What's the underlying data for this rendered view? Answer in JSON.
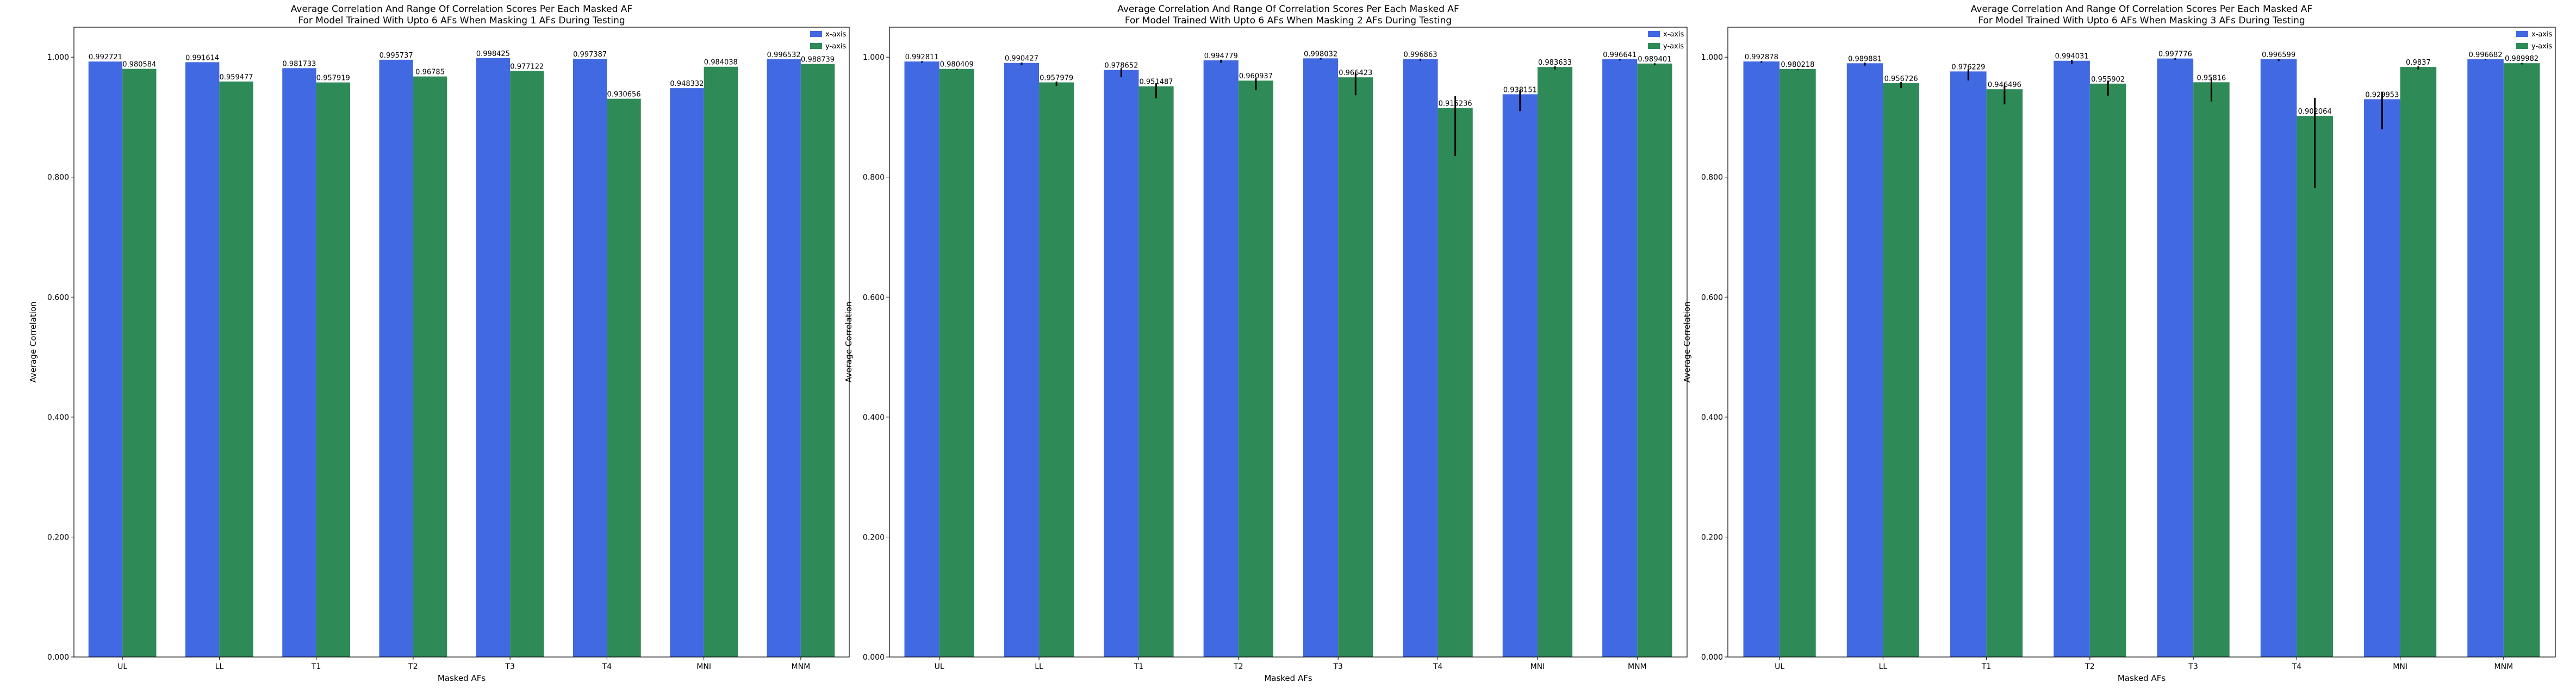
{
  "chart_data": [
    {
      "type": "bar",
      "title_line1": "Average Correlation And Range Of Correlation Scores Per Each Masked AF",
      "title_line2": "For Model Trained With Upto 6 AFs When Masking 1 AFs During Testing",
      "xlabel": "Masked AFs",
      "ylabel": "Average Correlation",
      "ylim": [
        0,
        1.05
      ],
      "yticks": [
        "0.000",
        "0.200",
        "0.400",
        "0.600",
        "0.800",
        "1.000"
      ],
      "ytick_values": [
        0,
        0.2,
        0.4,
        0.6,
        0.8,
        1.0
      ],
      "categories": [
        "UL",
        "LL",
        "T1",
        "T2",
        "T3",
        "T4",
        "MNI",
        "MNM"
      ],
      "legend_position": "top-right",
      "series": [
        {
          "name": "x-axis",
          "color": "#4169e1",
          "values": [
            0.992721,
            0.991614,
            0.981733,
            0.995737,
            0.998425,
            0.997387,
            0.948332,
            0.996532
          ],
          "labels": [
            "0.992721",
            "0.991614",
            "0.981733",
            "0.995737",
            "0.998425",
            "0.997387",
            "0.948332",
            "0.996532"
          ],
          "err": [
            0,
            0,
            0,
            0,
            0,
            0,
            0,
            0
          ]
        },
        {
          "name": "y-axis",
          "color": "#2e8b57",
          "values": [
            0.980584,
            0.959477,
            0.957919,
            0.96785,
            0.977122,
            0.930656,
            0.984038,
            0.988739
          ],
          "labels": [
            "0.980584",
            "0.959477",
            "0.957919",
            "0.96785",
            "0.977122",
            "0.930656",
            "0.984038",
            "0.988739"
          ],
          "err": [
            0,
            0,
            0,
            0,
            0,
            0,
            0,
            0
          ]
        }
      ]
    },
    {
      "type": "bar",
      "title_line1": "Average Correlation And Range Of Correlation Scores Per Each Masked AF",
      "title_line2": "For Model Trained With Upto 6 AFs When Masking 2 AFs During Testing",
      "xlabel": "Masked AFs",
      "ylabel": "Average Correlation",
      "ylim": [
        0,
        1.05
      ],
      "yticks": [
        "0.000",
        "0.200",
        "0.400",
        "0.600",
        "0.800",
        "1.000"
      ],
      "ytick_values": [
        0,
        0.2,
        0.4,
        0.6,
        0.8,
        1.0
      ],
      "categories": [
        "UL",
        "LL",
        "T1",
        "T2",
        "T3",
        "T4",
        "MNI",
        "MNM"
      ],
      "legend_position": "top-right",
      "series": [
        {
          "name": "x-axis",
          "color": "#4169e1",
          "values": [
            0.992811,
            0.990427,
            0.978652,
            0.994779,
            0.998032,
            0.996863,
            0.938151,
            0.996641
          ],
          "labels": [
            "0.992811",
            "0.990427",
            "0.978652",
            "0.994779",
            "0.998032",
            "0.996863",
            "0.938151",
            "0.996641"
          ],
          "err": [
            0.002,
            0.003,
            0.012,
            0.004,
            0.002,
            0.003,
            0.028,
            0.002
          ]
        },
        {
          "name": "y-axis",
          "color": "#2e8b57",
          "values": [
            0.980409,
            0.957979,
            0.951487,
            0.960937,
            0.966423,
            0.915236,
            0.983633,
            0.989401
          ],
          "labels": [
            "0.980409",
            "0.957979",
            "0.951487",
            "0.960937",
            "0.966423",
            "0.915236",
            "0.983633",
            "0.989401"
          ],
          "err": [
            0.002,
            0.006,
            0.02,
            0.016,
            0.03,
            0.08,
            0.004,
            0.002
          ]
        }
      ]
    },
    {
      "type": "bar",
      "title_line1": "Average Correlation And Range Of Correlation Scores Per Each Masked AF",
      "title_line2": "For Model Trained With Upto 6 AFs When Masking 3 AFs During Testing",
      "xlabel": "Masked AFs",
      "ylabel": "Average Correlation",
      "ylim": [
        0,
        1.05
      ],
      "yticks": [
        "0.000",
        "0.200",
        "0.400",
        "0.600",
        "0.800",
        "1.000"
      ],
      "ytick_values": [
        0,
        0.2,
        0.4,
        0.6,
        0.8,
        1.0
      ],
      "categories": [
        "UL",
        "LL",
        "T1",
        "T2",
        "T3",
        "T4",
        "MNI",
        "MNM"
      ],
      "legend_position": "top-right",
      "series": [
        {
          "name": "x-axis",
          "color": "#4169e1",
          "values": [
            0.992878,
            0.989881,
            0.976229,
            0.994031,
            0.997776,
            0.996599,
            0.929953,
            0.996682
          ],
          "labels": [
            "0.992878",
            "0.989881",
            "0.976229",
            "0.994031",
            "0.997776",
            "0.996599",
            "0.929953",
            "0.996682"
          ],
          "err": [
            0.002,
            0.004,
            0.015,
            0.005,
            0.002,
            0.003,
            0.05,
            0.002
          ]
        },
        {
          "name": "y-axis",
          "color": "#2e8b57",
          "values": [
            0.980218,
            0.956726,
            0.946496,
            0.955902,
            0.95816,
            0.902064,
            0.9837,
            0.989982
          ],
          "labels": [
            "0.980218",
            "0.956726",
            "0.946496",
            "0.955902",
            "0.95816",
            "0.902064",
            "0.9837",
            "0.989982"
          ],
          "err": [
            0.002,
            0.008,
            0.025,
            0.02,
            0.032,
            0.12,
            0.004,
            0.002
          ]
        }
      ]
    }
  ]
}
